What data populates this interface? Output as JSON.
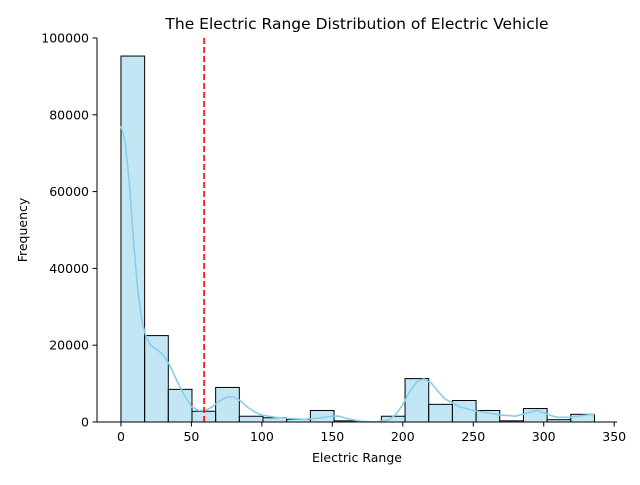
{
  "chart_data": {
    "type": "histogram",
    "title": "The Electric Range Distribution of Electric Vehicle",
    "xlabel": "Electric Range",
    "ylabel": "Frequency",
    "xlim": [
      -17,
      352
    ],
    "ylim": [
      0,
      100000
    ],
    "x_ticks": [
      0,
      50,
      100,
      150,
      200,
      250,
      300,
      350
    ],
    "y_ticks": [
      0,
      20000,
      40000,
      60000,
      80000,
      100000
    ],
    "grid": false,
    "bar_color": "#87ceeb",
    "bar_edge_color": "#000000",
    "kde_color": "#87ceeb",
    "mean_line": {
      "x": 59,
      "color": "#ff0000",
      "style": "dashed"
    },
    "bins": [
      {
        "x0": 0,
        "x1": 16.8,
        "count": 95300
      },
      {
        "x0": 16.8,
        "x1": 33.6,
        "count": 22500
      },
      {
        "x0": 33.6,
        "x1": 50.4,
        "count": 8500
      },
      {
        "x0": 50.4,
        "x1": 67.2,
        "count": 2800
      },
      {
        "x0": 67.2,
        "x1": 84.0,
        "count": 9000
      },
      {
        "x0": 84.0,
        "x1": 100.8,
        "count": 1500
      },
      {
        "x0": 100.8,
        "x1": 117.6,
        "count": 1100
      },
      {
        "x0": 117.6,
        "x1": 134.4,
        "count": 700
      },
      {
        "x0": 134.4,
        "x1": 151.2,
        "count": 3000
      },
      {
        "x0": 151.2,
        "x1": 168.0,
        "count": 300
      },
      {
        "x0": 168.0,
        "x1": 184.8,
        "count": 0
      },
      {
        "x0": 184.8,
        "x1": 201.6,
        "count": 1500
      },
      {
        "x0": 201.6,
        "x1": 218.4,
        "count": 11300
      },
      {
        "x0": 218.4,
        "x1": 235.2,
        "count": 4600
      },
      {
        "x0": 235.2,
        "x1": 252.0,
        "count": 5600
      },
      {
        "x0": 252.0,
        "x1": 268.8,
        "count": 3000
      },
      {
        "x0": 268.8,
        "x1": 285.6,
        "count": 300
      },
      {
        "x0": 285.6,
        "x1": 302.4,
        "count": 3500
      },
      {
        "x0": 302.4,
        "x1": 319.2,
        "count": 600
      },
      {
        "x0": 319.2,
        "x1": 336.0,
        "count": 2000
      }
    ],
    "kde": {
      "x": [
        0,
        3,
        6,
        9,
        12,
        15,
        18,
        21,
        25,
        30,
        35,
        40,
        45,
        50,
        55,
        60,
        65,
        70,
        75,
        80,
        85,
        90,
        95,
        100,
        110,
        120,
        130,
        140,
        150,
        155,
        160,
        170,
        180,
        190,
        195,
        200,
        205,
        210,
        215,
        220,
        225,
        230,
        240,
        250,
        260,
        270,
        280,
        290,
        295,
        300,
        305,
        310,
        320,
        330,
        336
      ],
      "y": [
        77000,
        73000,
        62000,
        47000,
        34000,
        26000,
        22000,
        20000,
        19000,
        17500,
        14500,
        10500,
        7000,
        4000,
        3000,
        3000,
        4000,
        5500,
        6500,
        6500,
        5500,
        3800,
        2600,
        1800,
        1200,
        900,
        700,
        1000,
        1500,
        1500,
        900,
        200,
        0,
        500,
        2000,
        4500,
        8000,
        10500,
        11200,
        10200,
        8000,
        6000,
        4000,
        3000,
        2400,
        1800,
        1500,
        2500,
        3000,
        2400,
        1700,
        1200,
        1300,
        1800,
        2000
      ]
    }
  }
}
